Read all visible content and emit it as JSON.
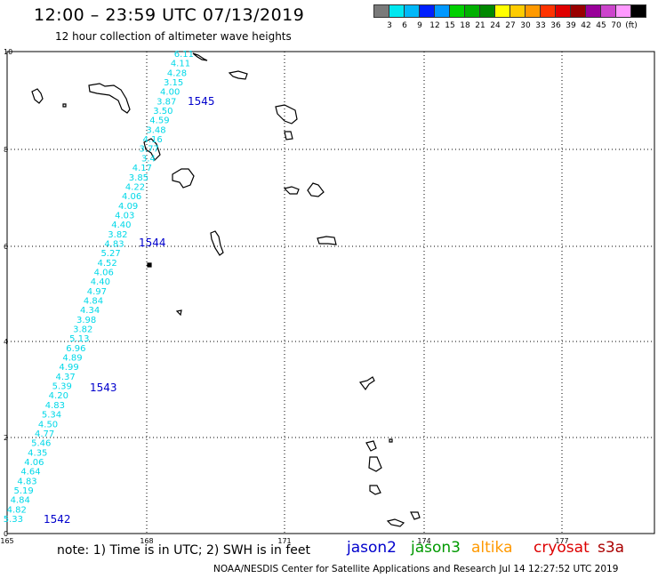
{
  "header": {
    "title": "12:00 – 23:59 UTC 07/13/2019",
    "subtitle": "12 hour collection of altimeter wave heights"
  },
  "legend": {
    "colors": [
      "#7a7a7a",
      "#00e8f0",
      "#00b8f8",
      "#0020ff",
      "#0098ff",
      "#00d000",
      "#00b000",
      "#008800",
      "#ffff00",
      "#ffcc00",
      "#ff9900",
      "#ff3300",
      "#e00000",
      "#990000",
      "#990099",
      "#cc44cc",
      "#ff99ff",
      "#000000"
    ],
    "labels": [
      "3",
      "6",
      "9",
      "12",
      "15",
      "18",
      "21",
      "24",
      "27",
      "30",
      "33",
      "36",
      "39",
      "42",
      "45",
      "70",
      "(ft)"
    ]
  },
  "axes": {
    "x_ticks": [
      "165",
      "168",
      "171",
      "174",
      "177"
    ],
    "y_ticks": [
      "0",
      "2",
      "4",
      "6",
      "8",
      "10"
    ]
  },
  "track": {
    "wave_heights": [
      "6.11",
      "4.11",
      "4.28",
      "3.15",
      "4.00",
      "3.87",
      "3.50",
      "4.59",
      "3.48",
      "4.16",
      "3.77",
      "3.4",
      "4.17",
      "3.85",
      "4.22",
      "4.06",
      "4.09",
      "4.03",
      "4.40",
      "3.82",
      "4.83",
      "5.27",
      "4.52",
      "4.06",
      "4.40",
      "4.97",
      "4.84",
      "4.34",
      "3.98",
      "3.82",
      "5.13",
      "6.96",
      "4.89",
      "4.99",
      "4.37",
      "5.39",
      "4.20",
      "4.83",
      "5.34",
      "4.50",
      "4.77",
      "5.46",
      "4.35",
      "4.06",
      "4.64",
      "4.83",
      "5.19",
      "4.84",
      "4.82",
      "5.33"
    ],
    "pass_labels": [
      "1545",
      "1544",
      "1543",
      "1542"
    ]
  },
  "note": "note:  1) Time is in UTC;  2) SWH is in feet",
  "satellites": [
    {
      "name": "jason2",
      "color": "#0000cc"
    },
    {
      "name": "jason3",
      "color": "#009900"
    },
    {
      "name": "altika",
      "color": "#ff9900"
    },
    {
      "name": "cryosat",
      "color": "#dd0000"
    },
    {
      "name": "s3a",
      "color": "#aa0000"
    }
  ],
  "credit": "NOAA/NESDIS Center for Satellite Applications and Research    Jul 14 12:27:52 UTC 2019"
}
